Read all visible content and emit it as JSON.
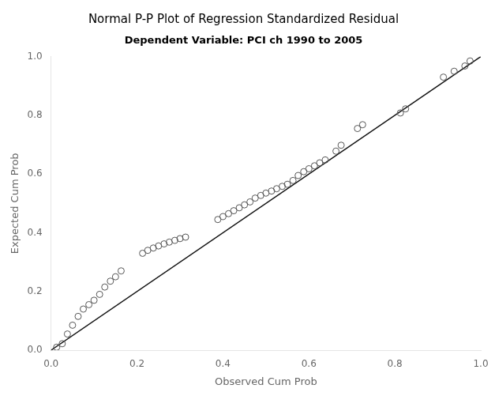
{
  "chart_data": {
    "type": "scatter",
    "title": "Normal P-P Plot of Regression Standardized Residual",
    "subtitle": "Dependent Variable: PCI ch 1990 to 2005",
    "xlabel": "Observed Cum Prob",
    "ylabel": "Expected Cum Prob",
    "xlim": [
      0.0,
      1.0
    ],
    "ylim": [
      0.0,
      1.0
    ],
    "xticks": [
      {
        "value": 0.0,
        "label": "0.0"
      },
      0.2,
      0.4,
      0.6,
      0.8,
      {
        "value": 1.0,
        "label": "1.0"
      }
    ],
    "yticks": [
      {
        "value": 0.0,
        "label": "0.0"
      },
      0.2,
      0.4,
      0.6,
      0.8,
      {
        "value": 1.0,
        "label": "1.0"
      }
    ],
    "grid": false,
    "series": [
      {
        "type": "line",
        "color": "#111111",
        "x": [
          0.0,
          1.0
        ],
        "values": [
          0.0,
          1.0
        ]
      },
      {
        "type": "scatter",
        "color": "#555555",
        "marker": "circle",
        "x": [
          0.013,
          0.026,
          0.038,
          0.05,
          0.063,
          0.075,
          0.088,
          0.1,
          0.113,
          0.125,
          0.138,
          0.15,
          0.163,
          0.213,
          0.225,
          0.238,
          0.25,
          0.263,
          0.275,
          0.288,
          0.3,
          0.313,
          0.388,
          0.4,
          0.413,
          0.425,
          0.438,
          0.45,
          0.463,
          0.475,
          0.488,
          0.5,
          0.513,
          0.525,
          0.538,
          0.55,
          0.563,
          0.575,
          0.588,
          0.6,
          0.613,
          0.625,
          0.638,
          0.663,
          0.675,
          0.713,
          0.725,
          0.813,
          0.825,
          0.913,
          0.938,
          0.963,
          0.975
        ],
        "values": [
          0.01,
          0.022,
          0.055,
          0.085,
          0.115,
          0.14,
          0.155,
          0.17,
          0.19,
          0.215,
          0.235,
          0.25,
          0.27,
          0.33,
          0.34,
          0.348,
          0.355,
          0.362,
          0.368,
          0.374,
          0.38,
          0.385,
          0.445,
          0.455,
          0.465,
          0.475,
          0.485,
          0.495,
          0.505,
          0.518,
          0.527,
          0.535,
          0.542,
          0.55,
          0.558,
          0.565,
          0.578,
          0.595,
          0.608,
          0.618,
          0.628,
          0.638,
          0.648,
          0.678,
          0.698,
          0.755,
          0.768,
          0.808,
          0.822,
          0.93,
          0.95,
          0.968,
          0.985
        ]
      }
    ]
  }
}
